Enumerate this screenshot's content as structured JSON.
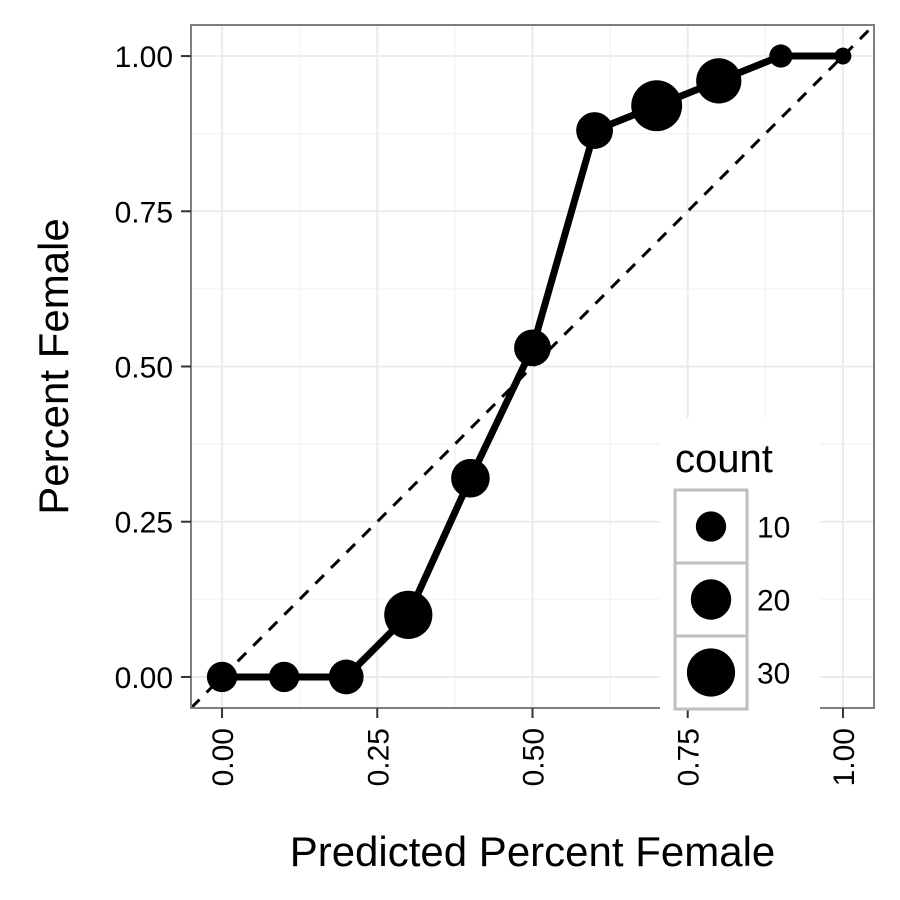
{
  "chart_data": {
    "type": "scatter",
    "xlabel": "Predicted Percent Female",
    "ylabel": "Percent Female",
    "xlim": [
      -0.05,
      1.05
    ],
    "ylim": [
      -0.05,
      1.05
    ],
    "x_ticks": [
      "0.00",
      "0.25",
      "0.50",
      "0.75",
      "1.00"
    ],
    "y_ticks": [
      "0.00",
      "0.25",
      "0.50",
      "0.75",
      "1.00"
    ],
    "grid": true,
    "reference_line": {
      "style": "dashed",
      "from": [
        0,
        0
      ],
      "to": [
        1,
        1
      ]
    },
    "points": [
      {
        "x": 0.0,
        "y": 0.0,
        "count": 10
      },
      {
        "x": 0.1,
        "y": 0.0,
        "count": 10
      },
      {
        "x": 0.2,
        "y": 0.0,
        "count": 14
      },
      {
        "x": 0.3,
        "y": 0.1,
        "count": 30
      },
      {
        "x": 0.4,
        "y": 0.32,
        "count": 18
      },
      {
        "x": 0.5,
        "y": 0.53,
        "count": 16
      },
      {
        "x": 0.6,
        "y": 0.88,
        "count": 16
      },
      {
        "x": 0.7,
        "y": 0.92,
        "count": 34
      },
      {
        "x": 0.8,
        "y": 0.96,
        "count": 26
      },
      {
        "x": 0.9,
        "y": 1.0,
        "count": 5
      },
      {
        "x": 1.0,
        "y": 1.0,
        "count": 2
      }
    ],
    "legend": {
      "title": "count",
      "position": "bottom-right",
      "entries": [
        {
          "label": "10",
          "count": 10
        },
        {
          "label": "20",
          "count": 20
        },
        {
          "label": "30",
          "count": 30
        }
      ]
    }
  },
  "colors": {
    "line": "#000000",
    "grid_major": "#ebebeb",
    "grid_minor": "#f5f5f5",
    "panel_border": "#7f7f7f",
    "legend_key_border": "#bfbfbf"
  }
}
